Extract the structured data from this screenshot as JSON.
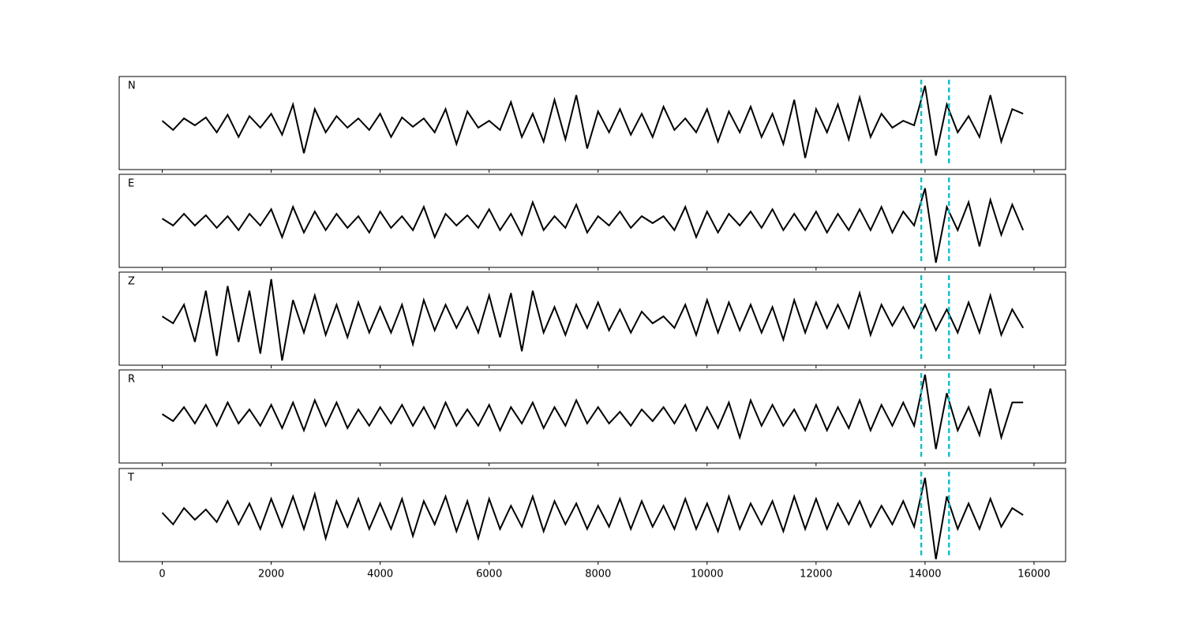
{
  "chart_data": {
    "type": "line",
    "x": [
      0,
      200,
      400,
      600,
      800,
      1000,
      1200,
      1400,
      1600,
      1800,
      2000,
      2200,
      2400,
      2600,
      2800,
      3000,
      3200,
      3400,
      3600,
      3800,
      4000,
      4200,
      4400,
      4600,
      4800,
      5000,
      5200,
      5400,
      5600,
      5800,
      6000,
      6200,
      6400,
      6600,
      6800,
      7000,
      7200,
      7400,
      7600,
      7800,
      8000,
      8200,
      8400,
      8600,
      8800,
      9000,
      9200,
      9400,
      9600,
      9800,
      10000,
      10200,
      10400,
      10600,
      10800,
      11000,
      11200,
      11400,
      11600,
      11800,
      12000,
      12200,
      12400,
      12600,
      12800,
      13000,
      13200,
      13400,
      13600,
      13800,
      14000,
      14200,
      14400,
      14600,
      14800,
      15000,
      15200,
      15400,
      15600,
      15800
    ],
    "xlim": [
      -790,
      16580
    ],
    "xticks": [
      0,
      2000,
      4000,
      6000,
      8000,
      10000,
      12000,
      14000,
      16000
    ],
    "vlines": [
      13930,
      14440
    ],
    "vline_color": "#17becf",
    "color": "#000000",
    "panels": [
      {
        "name": "N",
        "ylim": [
          -1,
          1
        ],
        "values": [
          0.05,
          -0.15,
          0.1,
          -0.05,
          0.12,
          -0.2,
          0.18,
          -0.3,
          0.15,
          -0.1,
          0.2,
          -0.25,
          0.4,
          -0.65,
          0.3,
          -0.2,
          0.15,
          -0.1,
          0.1,
          -0.15,
          0.2,
          -0.3,
          0.12,
          -0.08,
          0.1,
          -0.2,
          0.3,
          -0.45,
          0.25,
          -0.1,
          0.05,
          -0.15,
          0.45,
          -0.3,
          0.2,
          -0.4,
          0.5,
          -0.35,
          0.6,
          -0.55,
          0.25,
          -0.2,
          0.3,
          -0.25,
          0.2,
          -0.3,
          0.35,
          -0.15,
          0.1,
          -0.2,
          0.3,
          -0.4,
          0.25,
          -0.2,
          0.35,
          -0.3,
          0.2,
          -0.45,
          0.5,
          -0.75,
          0.3,
          -0.2,
          0.4,
          -0.35,
          0.55,
          -0.3,
          0.2,
          -0.1,
          0.05,
          -0.05,
          0.8,
          -0.7,
          0.4,
          -0.2,
          0.15,
          -0.3,
          0.6,
          -0.4,
          0.3,
          0.2
        ]
      },
      {
        "name": "E",
        "ylim": [
          -1,
          1
        ],
        "values": [
          0.05,
          -0.1,
          0.15,
          -0.1,
          0.12,
          -0.15,
          0.1,
          -0.2,
          0.15,
          -0.1,
          0.25,
          -0.35,
          0.3,
          -0.25,
          0.2,
          -0.2,
          0.15,
          -0.15,
          0.1,
          -0.25,
          0.2,
          -0.15,
          0.1,
          -0.2,
          0.3,
          -0.35,
          0.15,
          -0.1,
          0.12,
          -0.15,
          0.25,
          -0.2,
          0.15,
          -0.3,
          0.4,
          -0.2,
          0.1,
          -0.15,
          0.35,
          -0.25,
          0.1,
          -0.1,
          0.2,
          -0.15,
          0.1,
          -0.05,
          0.1,
          -0.2,
          0.3,
          -0.35,
          0.2,
          -0.25,
          0.15,
          -0.1,
          0.2,
          -0.15,
          0.25,
          -0.2,
          0.15,
          -0.2,
          0.2,
          -0.25,
          0.15,
          -0.2,
          0.25,
          -0.2,
          0.3,
          -0.25,
          0.2,
          -0.1,
          0.7,
          -0.9,
          0.3,
          -0.2,
          0.4,
          -0.55,
          0.45,
          -0.3,
          0.35,
          -0.2
        ]
      },
      {
        "name": "Z",
        "ylim": [
          -1,
          1
        ],
        "values": [
          0.05,
          -0.1,
          0.3,
          -0.5,
          0.6,
          -0.8,
          0.7,
          -0.5,
          0.6,
          -0.75,
          0.85,
          -0.9,
          0.4,
          -0.3,
          0.5,
          -0.35,
          0.3,
          -0.4,
          0.35,
          -0.3,
          0.25,
          -0.3,
          0.3,
          -0.55,
          0.4,
          -0.25,
          0.3,
          -0.2,
          0.25,
          -0.3,
          0.5,
          -0.4,
          0.55,
          -0.7,
          0.6,
          -0.3,
          0.25,
          -0.35,
          0.3,
          -0.2,
          0.35,
          -0.25,
          0.2,
          -0.3,
          0.15,
          -0.1,
          0.05,
          -0.2,
          0.3,
          -0.35,
          0.4,
          -0.3,
          0.35,
          -0.25,
          0.3,
          -0.3,
          0.25,
          -0.45,
          0.4,
          -0.3,
          0.35,
          -0.2,
          0.3,
          -0.2,
          0.55,
          -0.35,
          0.3,
          -0.15,
          0.25,
          -0.2,
          0.3,
          -0.25,
          0.2,
          -0.3,
          0.35,
          -0.3,
          0.5,
          -0.35,
          0.2,
          -0.2
        ]
      },
      {
        "name": "R",
        "ylim": [
          -1,
          1
        ],
        "values": [
          0.05,
          -0.1,
          0.2,
          -0.15,
          0.25,
          -0.2,
          0.3,
          -0.15,
          0.15,
          -0.2,
          0.25,
          -0.25,
          0.3,
          -0.3,
          0.35,
          -0.2,
          0.3,
          -0.25,
          0.15,
          -0.2,
          0.2,
          -0.15,
          0.25,
          -0.2,
          0.2,
          -0.25,
          0.3,
          -0.2,
          0.15,
          -0.2,
          0.25,
          -0.3,
          0.2,
          -0.15,
          0.3,
          -0.25,
          0.2,
          -0.2,
          0.35,
          -0.15,
          0.2,
          -0.15,
          0.1,
          -0.2,
          0.15,
          -0.1,
          0.2,
          -0.15,
          0.25,
          -0.3,
          0.2,
          -0.25,
          0.3,
          -0.45,
          0.35,
          -0.2,
          0.25,
          -0.2,
          0.15,
          -0.3,
          0.25,
          -0.3,
          0.2,
          -0.25,
          0.35,
          -0.3,
          0.25,
          -0.2,
          0.3,
          -0.2,
          0.9,
          -0.7,
          0.5,
          -0.3,
          0.2,
          -0.4,
          0.6,
          -0.45,
          0.3,
          0.3
        ]
      },
      {
        "name": "T",
        "ylim": [
          -1,
          1
        ],
        "values": [
          0.05,
          -0.2,
          0.15,
          -0.1,
          0.12,
          -0.15,
          0.3,
          -0.2,
          0.25,
          -0.3,
          0.35,
          -0.25,
          0.4,
          -0.3,
          0.45,
          -0.5,
          0.3,
          -0.25,
          0.35,
          -0.3,
          0.25,
          -0.3,
          0.35,
          -0.45,
          0.3,
          -0.2,
          0.4,
          -0.35,
          0.3,
          -0.5,
          0.35,
          -0.3,
          0.2,
          -0.25,
          0.4,
          -0.35,
          0.3,
          -0.2,
          0.25,
          -0.3,
          0.2,
          -0.25,
          0.35,
          -0.3,
          0.3,
          -0.25,
          0.2,
          -0.3,
          0.35,
          -0.3,
          0.25,
          -0.35,
          0.4,
          -0.3,
          0.25,
          -0.2,
          0.3,
          -0.35,
          0.4,
          -0.3,
          0.35,
          -0.3,
          0.25,
          -0.2,
          0.3,
          -0.25,
          0.2,
          -0.2,
          0.3,
          -0.25,
          0.8,
          -0.95,
          0.4,
          -0.3,
          0.25,
          -0.3,
          0.35,
          -0.25,
          0.15,
          0.0
        ]
      }
    ]
  }
}
